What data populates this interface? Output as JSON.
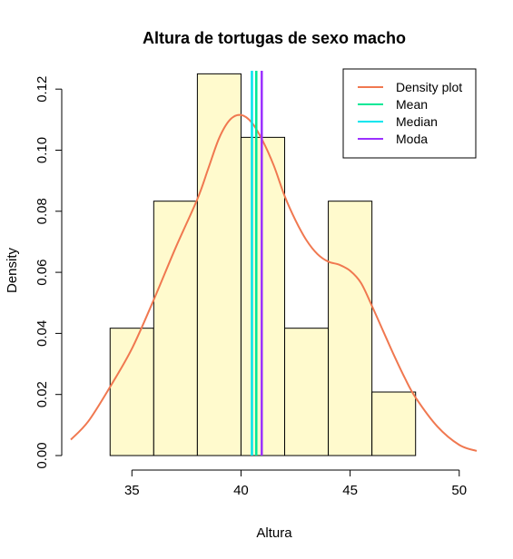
{
  "chart_data": {
    "type": "histogram",
    "title": "Altura de tortugas de sexo macho",
    "xlabel": "Altura",
    "ylabel": "Density",
    "xlim": [
      32.2,
      50.8
    ],
    "ylim": [
      0,
      0.126
    ],
    "x_ticks": [
      35,
      40,
      45,
      50
    ],
    "y_ticks": [
      0.0,
      0.02,
      0.04,
      0.06,
      0.08,
      0.1,
      0.12
    ],
    "y_tick_labels": [
      "0.00",
      "0.02",
      "0.04",
      "0.06",
      "0.08",
      "0.10",
      "0.12"
    ],
    "bins": [
      {
        "from": 34,
        "to": 36,
        "density": 0.0417
      },
      {
        "from": 36,
        "to": 38,
        "density": 0.0833
      },
      {
        "from": 38,
        "to": 40,
        "density": 0.125
      },
      {
        "from": 40,
        "to": 42,
        "density": 0.1042
      },
      {
        "from": 42,
        "to": 44,
        "density": 0.0417
      },
      {
        "from": 44,
        "to": 46,
        "density": 0.0833
      },
      {
        "from": 46,
        "to": 48,
        "density": 0.0208
      }
    ],
    "bar_color": "#FFFACD",
    "series": [
      {
        "name": "Density plot",
        "type": "line",
        "color": "#F07850",
        "x": [
          32.2,
          33,
          34,
          35,
          36,
          37,
          38,
          38.5,
          39,
          39.5,
          40,
          40.5,
          41,
          41.5,
          42,
          42.5,
          43,
          43.5,
          44,
          44.5,
          45,
          45.5,
          46,
          46.5,
          47,
          47.5,
          48,
          49,
          50,
          50.8
        ],
        "y": [
          0.0052,
          0.0112,
          0.0225,
          0.035,
          0.051,
          0.068,
          0.084,
          0.094,
          0.104,
          0.11,
          0.1115,
          0.109,
          0.103,
          0.095,
          0.085,
          0.077,
          0.0705,
          0.066,
          0.0635,
          0.0625,
          0.0605,
          0.0565,
          0.049,
          0.041,
          0.033,
          0.0255,
          0.019,
          0.0095,
          0.0035,
          0.0015
        ]
      },
      {
        "name": "Mean",
        "type": "vline",
        "color": "#00E896",
        "x": 40.7
      },
      {
        "name": "Median",
        "type": "vline",
        "color": "#00E5EE",
        "x": 40.5
      },
      {
        "name": "Moda",
        "type": "vline",
        "color": "#9B30FF",
        "x": 40.95
      }
    ],
    "legend": {
      "position": "top-right",
      "entries": [
        {
          "label": "Density plot",
          "color": "#F07850"
        },
        {
          "label": "Mean",
          "color": "#00E896"
        },
        {
          "label": "Median",
          "color": "#00E5EE"
        },
        {
          "label": "Moda",
          "color": "#9B30FF"
        }
      ]
    }
  }
}
